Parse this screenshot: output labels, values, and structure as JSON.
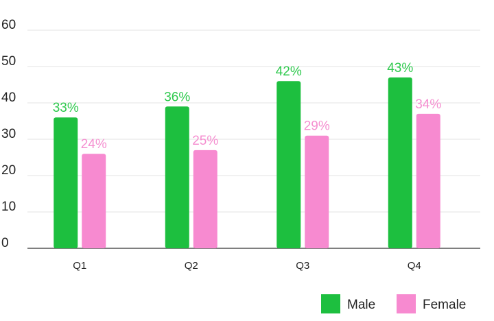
{
  "chart_data": {
    "type": "bar",
    "categories": [
      "Q1",
      "Q2",
      "Q3",
      "Q4"
    ],
    "series": [
      {
        "name": "Male",
        "values": [
          36,
          39,
          46,
          47
        ],
        "labels": [
          "33%",
          "36%",
          "42%",
          "43%"
        ],
        "color": "#1dbf3f",
        "label_color": "#2fc94e"
      },
      {
        "name": "Female",
        "values": [
          26,
          27,
          31,
          37
        ],
        "labels": [
          "24%",
          "25%",
          "29%",
          "34%"
        ],
        "color": "#f78ad0",
        "label_color": "#f58fd0"
      }
    ],
    "ylim": [
      0,
      60
    ],
    "yticks": [
      0,
      10,
      20,
      30,
      40,
      50,
      60
    ],
    "grid": true,
    "legend": "bottom-right"
  }
}
